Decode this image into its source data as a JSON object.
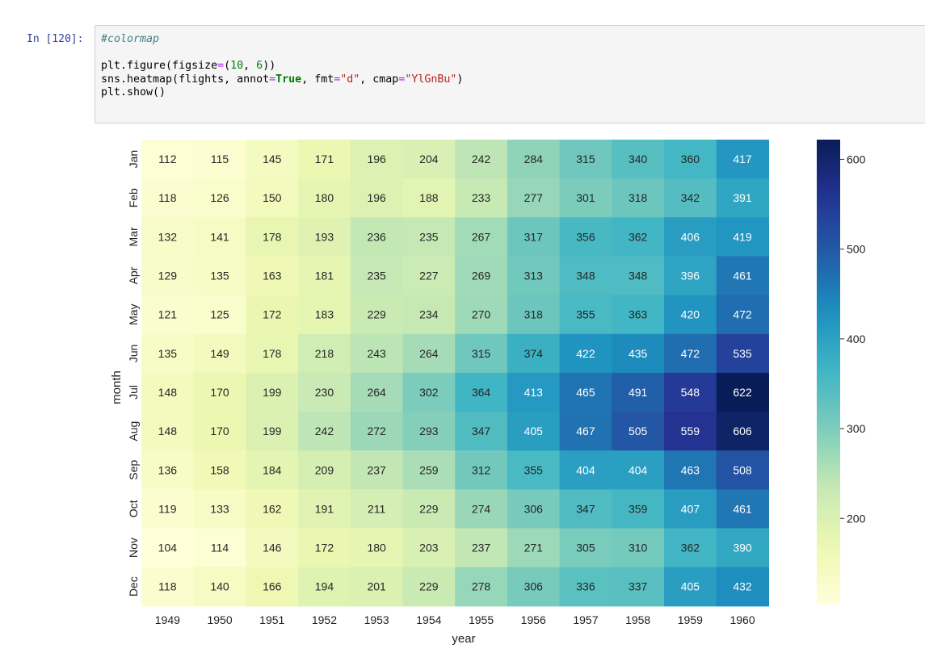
{
  "cell": {
    "prompt": "In [120]:",
    "code_lines": [
      [
        {
          "t": "#colormap",
          "c": "cm"
        }
      ],
      [],
      [
        {
          "t": "plt.figure(figsize"
        },
        {
          "t": "=",
          "c": "op"
        },
        {
          "t": "("
        },
        {
          "t": "10",
          "c": "num"
        },
        {
          "t": ", "
        },
        {
          "t": "6",
          "c": "num"
        },
        {
          "t": "))"
        }
      ],
      [
        {
          "t": "sns.heatmap(flights, annot"
        },
        {
          "t": "=",
          "c": "op"
        },
        {
          "t": "True",
          "c": "kw"
        },
        {
          "t": ", fmt"
        },
        {
          "t": "=",
          "c": "op"
        },
        {
          "t": "\"d\"",
          "c": "str"
        },
        {
          "t": ", cmap"
        },
        {
          "t": "=",
          "c": "op"
        },
        {
          "t": "\"YlGnBu\"",
          "c": "str"
        },
        {
          "t": ")"
        }
      ],
      [
        {
          "t": "plt.show()"
        }
      ]
    ]
  },
  "chart_data": {
    "type": "heatmap",
    "cmap": "YlGnBu",
    "xlabel": "year",
    "ylabel": "month",
    "x": [
      "1949",
      "1950",
      "1951",
      "1952",
      "1953",
      "1954",
      "1955",
      "1956",
      "1957",
      "1958",
      "1959",
      "1960"
    ],
    "y": [
      "Jan",
      "Feb",
      "Mar",
      "Apr",
      "May",
      "Jun",
      "Jul",
      "Aug",
      "Sep",
      "Oct",
      "Nov",
      "Dec"
    ],
    "values": [
      [
        112,
        115,
        145,
        171,
        196,
        204,
        242,
        284,
        315,
        340,
        360,
        417
      ],
      [
        118,
        126,
        150,
        180,
        196,
        188,
        233,
        277,
        301,
        318,
        342,
        391
      ],
      [
        132,
        141,
        178,
        193,
        236,
        235,
        267,
        317,
        356,
        362,
        406,
        419
      ],
      [
        129,
        135,
        163,
        181,
        235,
        227,
        269,
        313,
        348,
        348,
        396,
        461
      ],
      [
        121,
        125,
        172,
        183,
        229,
        234,
        270,
        318,
        355,
        363,
        420,
        472
      ],
      [
        135,
        149,
        178,
        218,
        243,
        264,
        315,
        374,
        422,
        435,
        472,
        535
      ],
      [
        148,
        170,
        199,
        230,
        264,
        302,
        364,
        413,
        465,
        491,
        548,
        622
      ],
      [
        148,
        170,
        199,
        242,
        272,
        293,
        347,
        405,
        467,
        505,
        559,
        606
      ],
      [
        136,
        158,
        184,
        209,
        237,
        259,
        312,
        355,
        404,
        404,
        463,
        508
      ],
      [
        119,
        133,
        162,
        191,
        211,
        229,
        274,
        306,
        347,
        359,
        407,
        461
      ],
      [
        104,
        114,
        146,
        172,
        180,
        203,
        237,
        271,
        305,
        310,
        362,
        390
      ],
      [
        118,
        140,
        166,
        194,
        201,
        229,
        278,
        306,
        336,
        337,
        405,
        432
      ]
    ],
    "vmin": 104,
    "vmax": 622,
    "colorbar_ticks": [
      600,
      500,
      400,
      300,
      200
    ],
    "grid": false
  }
}
